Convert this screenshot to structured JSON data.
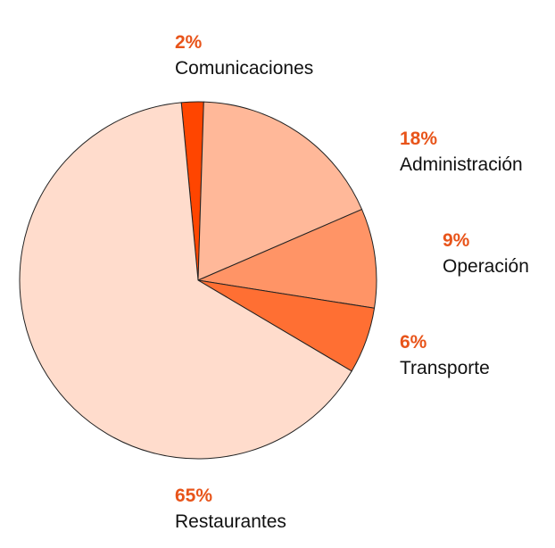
{
  "chart_data": {
    "type": "pie",
    "start_angle_deg": -5.4,
    "direction": "clockwise",
    "slices": [
      {
        "label": "Comunicaciones",
        "value": 2,
        "value_label": "2%",
        "color": "#ff4500"
      },
      {
        "label": "Administración",
        "value": 18,
        "value_label": "18%",
        "color": "#ffb899"
      },
      {
        "label": "Operación",
        "value": 9,
        "value_label": "9%",
        "color": "#ff9466"
      },
      {
        "label": "Transporte",
        "value": 6,
        "value_label": "6%",
        "color": "#ff6f33"
      },
      {
        "label": "Restaurantes",
        "value": 65,
        "value_label": "65%",
        "color": "#ffdccc"
      }
    ],
    "label_color": "#e8541a",
    "stroke_color": "#222222",
    "legend": "none"
  }
}
